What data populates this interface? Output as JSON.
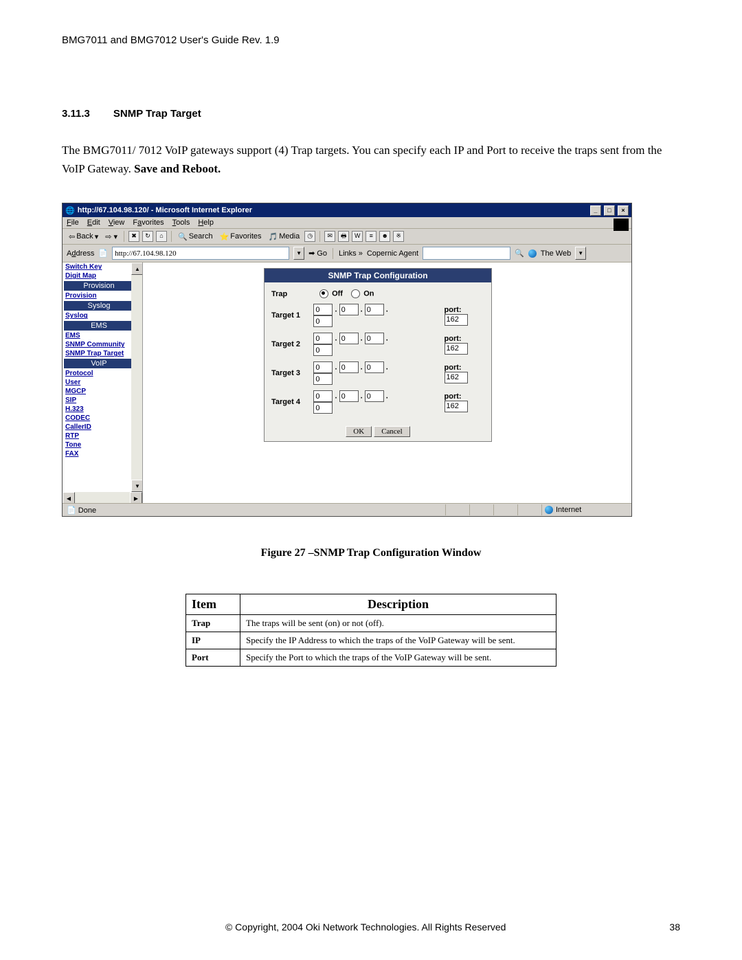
{
  "doc": {
    "header": "BMG7011 and BMG7012 User's Guide Rev. 1.9",
    "section_no": "3.11.3",
    "section_title": "SNMP Trap Target",
    "body_part1": "The BMG7011/ 7012 VoIP gateways support (4) Trap targets. You can specify each IP and Port to receive the traps sent from the VoIP Gateway. ",
    "body_bold": "Save and Reboot.",
    "figure_caption": "Figure 27 –SNMP Trap Configuration Window",
    "copyright": "© Copyright, 2004 Oki Network Technologies. All Rights Reserved",
    "page_no": "38"
  },
  "ie": {
    "title": "http://67.104.98.120/ - Microsoft Internet Explorer",
    "menus": [
      "File",
      "Edit",
      "View",
      "Favorites",
      "Tools",
      "Help"
    ],
    "toolbar": {
      "back": "Back",
      "search": "Search",
      "favorites": "Favorites",
      "media": "Media"
    },
    "addrbar": {
      "label": "Address",
      "url": "http://67.104.98.120",
      "go": "Go",
      "links": "Links",
      "copernic": "Copernic Agent",
      "theweb": "The Web"
    },
    "status": {
      "done": "Done",
      "zone": "Internet"
    }
  },
  "sidebar": {
    "items": [
      {
        "type": "link",
        "label": "Switch Key"
      },
      {
        "type": "link",
        "label": "Digit Map"
      },
      {
        "type": "head",
        "label": "Provision"
      },
      {
        "type": "link",
        "label": "Provision"
      },
      {
        "type": "head",
        "label": "Syslog"
      },
      {
        "type": "link",
        "label": "Syslog"
      },
      {
        "type": "head",
        "label": "EMS"
      },
      {
        "type": "link",
        "label": "EMS"
      },
      {
        "type": "link",
        "label": "SNMP Community"
      },
      {
        "type": "link",
        "label": "SNMP Trap Target"
      },
      {
        "type": "head",
        "label": "VoIP"
      },
      {
        "type": "link",
        "label": "Protocol"
      },
      {
        "type": "link",
        "label": "User"
      },
      {
        "type": "link",
        "label": "MGCP"
      },
      {
        "type": "link",
        "label": "SIP"
      },
      {
        "type": "link",
        "label": "H.323"
      },
      {
        "type": "link",
        "label": "CODEC"
      },
      {
        "type": "link",
        "label": "CallerID"
      },
      {
        "type": "link",
        "label": "RTP"
      },
      {
        "type": "link",
        "label": "Tone"
      },
      {
        "type": "link",
        "label": "FAX"
      }
    ]
  },
  "snmp": {
    "title": "SNMP Trap Configuration",
    "trap_label": "Trap",
    "off": "Off",
    "on": "On",
    "port_label": "port:",
    "targets": [
      {
        "label": "Target 1",
        "ip": [
          "0",
          "0",
          "0",
          "0"
        ],
        "port": "162"
      },
      {
        "label": "Target 2",
        "ip": [
          "0",
          "0",
          "0",
          "0"
        ],
        "port": "162"
      },
      {
        "label": "Target 3",
        "ip": [
          "0",
          "0",
          "0",
          "0"
        ],
        "port": "162"
      },
      {
        "label": "Target 4",
        "ip": [
          "0",
          "0",
          "0",
          "0"
        ],
        "port": "162"
      }
    ],
    "ok": "OK",
    "cancel": "Cancel"
  },
  "table": {
    "h_item": "Item",
    "h_desc": "Description",
    "rows": [
      {
        "item": "Trap",
        "desc": "The traps will be sent (on) or not (off)."
      },
      {
        "item": "IP",
        "desc": "Specify the IP Address to which the traps of the VoIP Gateway will be sent."
      },
      {
        "item": "Port",
        "desc": "Specify the Port to which the traps of the VoIP Gateway will be sent."
      }
    ]
  },
  "colors": {
    "titlebar": "#0a246a",
    "ui_bg": "#d6d3ce",
    "snmp_head": "#2a3e70",
    "link": "#00009c"
  }
}
